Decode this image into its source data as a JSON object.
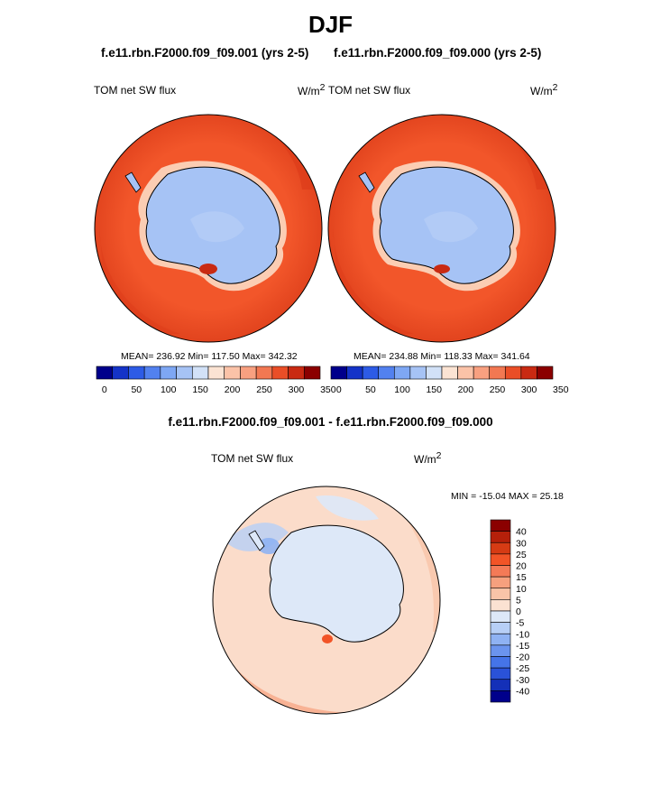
{
  "figure": {
    "season": "DJF",
    "left_case": "f.e11.rbn.F2000.f09_f09.001 (yrs 2-5)",
    "right_case": "f.e11.rbn.F2000.f09_f09.000 (yrs 2-5)",
    "diff_title": "f.e11.rbn.F2000.f09_f09.001 - f.e11.rbn.F2000.f09_f09.000"
  },
  "colors": {
    "ocean": "#f2562a",
    "ocean_dark": "#dd3c1a",
    "continent": "#a6c3f5",
    "coast_light": "#fbcdb3",
    "diff_base": "#fbdcca",
    "diff_warm": "#f4a78b",
    "diff_cool": "#d9e6f8"
  },
  "chart_data": [
    {
      "type": "heatmap",
      "projection": "south-polar-stereographic",
      "variable": "TOM net SW flux",
      "units_label": "W/m",
      "units_exp": "2",
      "stats": "MEAN= 236.92  Min= 117.50  Max= 342.32",
      "mean": 236.92,
      "min": 117.5,
      "max": 342.32,
      "colorbar": {
        "levels": [
          25,
          50,
          75,
          100,
          125,
          150,
          175,
          200,
          225,
          250,
          275,
          300,
          325
        ],
        "tick_labels": [
          "0",
          "50",
          "100",
          "150",
          "200",
          "250",
          "300",
          "350"
        ],
        "colors": [
          "#00008b",
          "#1433c8",
          "#2d5be6",
          "#5281ef",
          "#7ea7f4",
          "#a6c3f5",
          "#d2e1f7",
          "#fbe3d3",
          "#fbc3a8",
          "#f8a080",
          "#f27852",
          "#ea4e27",
          "#c92a12",
          "#8b0000"
        ]
      }
    },
    {
      "type": "heatmap",
      "projection": "south-polar-stereographic",
      "variable": "TOM net SW flux",
      "units_label": "W/m",
      "units_exp": "2",
      "stats": "MEAN= 234.88  Min= 118.33  Max= 341.64",
      "mean": 234.88,
      "min": 118.33,
      "max": 341.64,
      "colorbar": {
        "levels": [
          25,
          50,
          75,
          100,
          125,
          150,
          175,
          200,
          225,
          250,
          275,
          300,
          325
        ],
        "tick_labels": [
          "0",
          "50",
          "100",
          "150",
          "200",
          "250",
          "300",
          "350"
        ],
        "colors": [
          "#00008b",
          "#1433c8",
          "#2d5be6",
          "#5281ef",
          "#7ea7f4",
          "#a6c3f5",
          "#d2e1f7",
          "#fbe3d3",
          "#fbc3a8",
          "#f8a080",
          "#f27852",
          "#ea4e27",
          "#c92a12",
          "#8b0000"
        ]
      }
    },
    {
      "type": "heatmap",
      "projection": "south-polar-stereographic",
      "variable": "TOM net SW flux",
      "units_label": "W/m",
      "units_exp": "2",
      "stats": "MIN = -15.04 MAX =  25.18",
      "min": -15.04,
      "max": 25.18,
      "colorbar": {
        "levels": [
          -40,
          -30,
          -25,
          -20,
          -15,
          -10,
          -5,
          0,
          5,
          10,
          15,
          20,
          25,
          30,
          40
        ],
        "tick_labels": [
          "40",
          "30",
          "25",
          "20",
          "15",
          "10",
          "5",
          "0",
          "-5",
          "-10",
          "-15",
          "-20",
          "-25",
          "-30",
          "-40"
        ],
        "colors": [
          "#8b0000",
          "#b5200a",
          "#d63b14",
          "#f25427",
          "#f47a57",
          "#f6a07e",
          "#f9c4a8",
          "#fbe2d2",
          "#dde8f8",
          "#b7cff6",
          "#8fb2f3",
          "#6b94ee",
          "#4574e8",
          "#2a52d8",
          "#1430b8",
          "#00008b"
        ]
      }
    }
  ]
}
